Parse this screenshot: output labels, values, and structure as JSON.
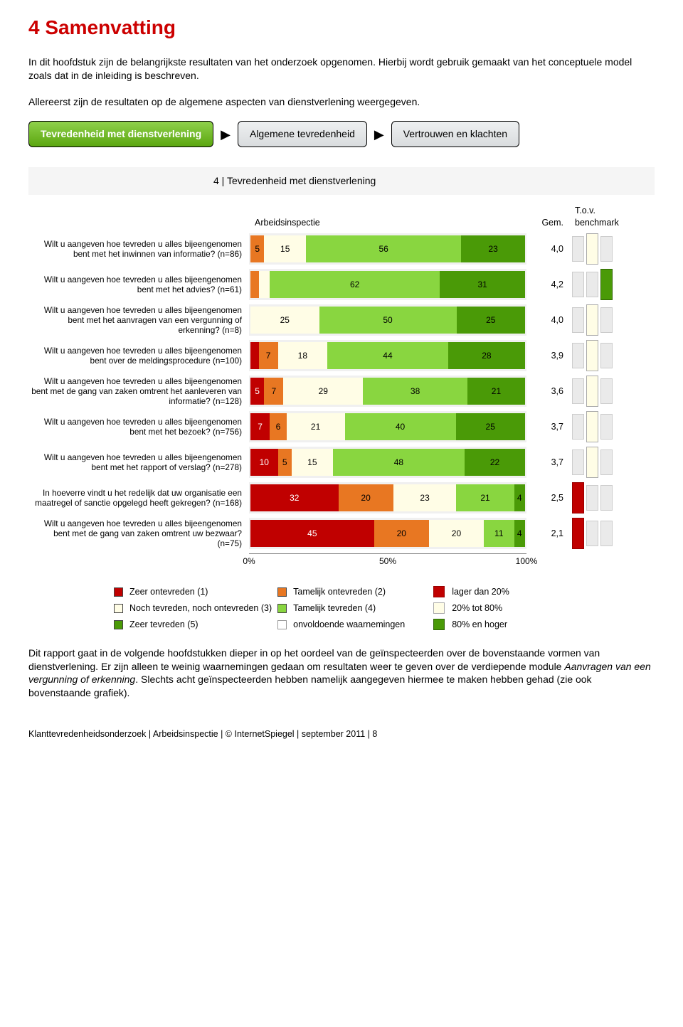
{
  "colors": {
    "red": "#c00000",
    "orange": "#e87722",
    "cream": "#fffde6",
    "light_green": "#89d640",
    "dark_green": "#4a9a07",
    "light_grey": "#eaeaea"
  },
  "heading": "4 Samenvatting",
  "intro1": "In dit hoofdstuk zijn de belangrijkste resultaten van het onderzoek opgenomen. Hierbij wordt gebruik gemaakt van het conceptuele model zoals dat in de inleiding is beschreven.",
  "intro2": "Allereerst zijn de resultaten op de algemene aspecten van dienstverlening weergegeven.",
  "flow": {
    "box1": "Tevredenheid met dienstverlening",
    "box2": "Algemene tevredenheid",
    "box3": "Vertrouwen en klachten"
  },
  "chart_title": "4 | Tevredenheid met dienstverlening",
  "col_arb": "Arbeidsinspectie",
  "col_gem": "Gem.",
  "col_bm": "T.o.v. benchmark",
  "rows": [
    {
      "label": "Wilt u aangeven hoe tevreden u alles bijeengenomen bent met het inwinnen van informatie? (n=86)",
      "segments": [
        {
          "v": 0,
          "show": false
        },
        {
          "v": 5,
          "show": true
        },
        {
          "v": 15,
          "show": true
        },
        {
          "v": 56,
          "show": true
        },
        {
          "v": 23,
          "show": true
        }
      ],
      "score": "4,0",
      "bm": 2
    },
    {
      "label": "Wilt u aangeven hoe tevreden u alles bijeengenomen bent met het advies? (n=61)",
      "segments": [
        {
          "v": 0,
          "show": false
        },
        {
          "v": 3,
          "show": false
        },
        {
          "v": 4,
          "show": false
        },
        {
          "v": 62,
          "show": true
        },
        {
          "v": 31,
          "show": true
        }
      ],
      "score": "4,2",
      "bm": 3
    },
    {
      "label": "Wilt u aangeven hoe tevreden u alles bijeengenomen bent met het aanvragen van een vergunning of erkenning? (n=8)",
      "segments": [
        {
          "v": 0,
          "show": false
        },
        {
          "v": 0,
          "show": false
        },
        {
          "v": 25,
          "show": true
        },
        {
          "v": 50,
          "show": true
        },
        {
          "v": 25,
          "show": true
        }
      ],
      "score": "4,0",
      "bm": 2
    },
    {
      "label": "Wilt u aangeven hoe tevreden u alles bijeengenomen bent over de meldingsprocedure (n=100)",
      "segments": [
        {
          "v": 3,
          "show": false
        },
        {
          "v": 7,
          "show": true
        },
        {
          "v": 18,
          "show": true
        },
        {
          "v": 44,
          "show": true
        },
        {
          "v": 28,
          "show": true
        }
      ],
      "score": "3,9",
      "bm": 2
    },
    {
      "label": "Wilt u aangeven hoe tevreden u alles bijeengenomen bent met de gang van zaken omtrent het aanleveren van informatie? (n=128)",
      "segments": [
        {
          "v": 5,
          "show": true
        },
        {
          "v": 7,
          "show": true
        },
        {
          "v": 29,
          "show": true
        },
        {
          "v": 38,
          "show": true
        },
        {
          "v": 21,
          "show": true
        }
      ],
      "score": "3,6",
      "bm": 2
    },
    {
      "label": "Wilt u aangeven hoe tevreden u alles bijeengenomen bent met het bezoek? (n=756)",
      "segments": [
        {
          "v": 7,
          "show": true
        },
        {
          "v": 6,
          "show": true
        },
        {
          "v": 21,
          "show": true
        },
        {
          "v": 40,
          "show": true
        },
        {
          "v": 25,
          "show": true
        }
      ],
      "score": "3,7",
      "bm": 2
    },
    {
      "label": "Wilt u aangeven hoe tevreden u alles bijeengenomen bent met het rapport of verslag? (n=278)",
      "segments": [
        {
          "v": 10,
          "show": true
        },
        {
          "v": 5,
          "show": true
        },
        {
          "v": 15,
          "show": true
        },
        {
          "v": 48,
          "show": true
        },
        {
          "v": 22,
          "show": true
        }
      ],
      "score": "3,7",
      "bm": 2
    },
    {
      "label": "In hoeverre vindt u het redelijk dat uw organisatie een maatregel of sanctie opgelegd heeft gekregen? (n=168)",
      "segments": [
        {
          "v": 32,
          "show": true
        },
        {
          "v": 20,
          "show": true
        },
        {
          "v": 23,
          "show": true
        },
        {
          "v": 21,
          "show": true
        },
        {
          "v": 4,
          "show": true
        }
      ],
      "score": "2,5",
      "bm": 1
    },
    {
      "label": "Wilt u aangeven hoe tevreden u alles bijeengenomen bent met de gang van zaken omtrent uw bezwaar? (n=75)",
      "segments": [
        {
          "v": 45,
          "show": true
        },
        {
          "v": 20,
          "show": true
        },
        {
          "v": 20,
          "show": true
        },
        {
          "v": 11,
          "show": true
        },
        {
          "v": 4,
          "show": true
        }
      ],
      "score": "2,1",
      "bm": 1
    }
  ],
  "axis": {
    "t0": "0%",
    "t50": "50%",
    "t100": "100%"
  },
  "legend": {
    "l1": "Zeer ontevreden (1)",
    "l2": "Tamelijk ontevreden (2)",
    "l3": "Noch tevreden, noch ontevreden (3)",
    "l4": "Tamelijk tevreden (4)",
    "l5": "Zeer tevreden (5)",
    "l6": "onvoldoende waarnemingen",
    "r1": "lager dan 20%",
    "r2": "20% tot 80%",
    "r3": "80% en hoger"
  },
  "body_text_before": "Dit rapport gaat in de volgende hoofdstukken dieper in op het oordeel van de geïnspecteerden over de bovenstaande vormen van dienstverlening. Er zijn alleen te weinig waarnemingen gedaan om resultaten weer te geven over de verdiepende module ",
  "body_text_em": "Aanvragen van een vergunning of erkenning",
  "body_text_after": ". Slechts acht geïnspecteerden hebben namelijk aangegeven hiermee te maken hebben gehad (zie ook bovenstaande grafiek).",
  "footer": "Klanttevredenheidsonderzoek | Arbeidsinspectie | © InternetSpiegel | september 2011 | 8"
}
